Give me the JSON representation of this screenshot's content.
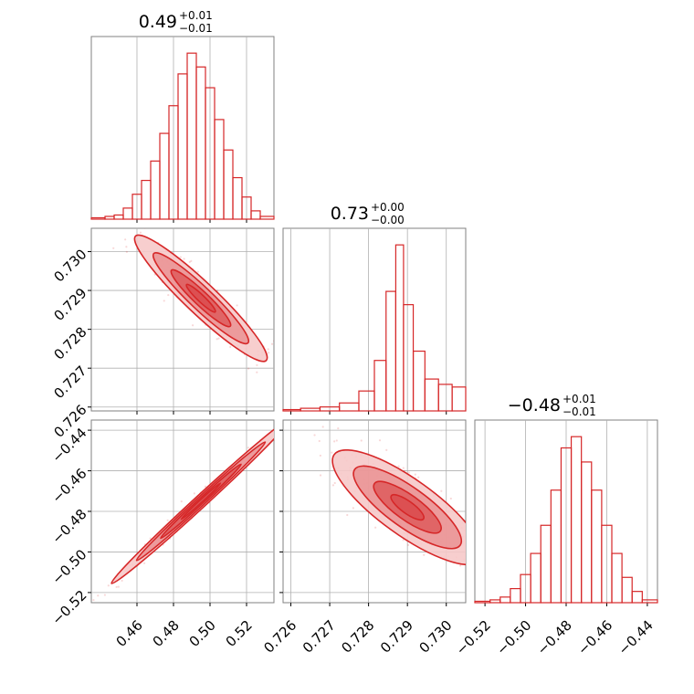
{
  "colors": {
    "accent": "#d62728",
    "grid": "#b0b0b0",
    "frame": "#808080",
    "fill_light": "#f6c9c9",
    "fill_mid": "#e88a8b",
    "fill_dark": "#dc4e50"
  },
  "chart_data": [
    {
      "type": "histogram",
      "panel": "hist-param-1",
      "title": {
        "median": "0.49",
        "plus": "+0.01",
        "minus": "−0.01"
      },
      "xlim": [
        0.435,
        0.535
      ],
      "grid": true,
      "x": [
        0.44,
        0.445,
        0.45,
        0.455,
        0.46,
        0.465,
        0.47,
        0.475,
        0.48,
        0.485,
        0.49,
        0.495,
        0.5,
        0.505,
        0.51,
        0.515,
        0.52,
        0.525,
        0.53
      ],
      "counts": [
        1,
        2,
        3,
        8,
        18,
        28,
        42,
        62,
        82,
        105,
        120,
        110,
        95,
        72,
        50,
        30,
        16,
        6,
        2
      ]
    },
    {
      "type": "histogram",
      "panel": "hist-param-2",
      "title": {
        "median": "0.73",
        "plus": "+0.00",
        "minus": "−0.00"
      },
      "xlim": [
        0.7258,
        0.7305
      ],
      "grid": true,
      "x": [
        0.726,
        0.7265,
        0.727,
        0.7275,
        0.728,
        0.7283,
        0.7286,
        0.7288,
        0.729,
        0.7293,
        0.7296,
        0.73,
        0.7303
      ],
      "counts": [
        1,
        2,
        3,
        6,
        15,
        38,
        90,
        125,
        80,
        45,
        24,
        20,
        18
      ]
    },
    {
      "type": "histogram",
      "panel": "hist-param-3",
      "title": {
        "median": "−0.48",
        "plus": "+0.01",
        "minus": "−0.01"
      },
      "xlim": [
        -0.525,
        -0.435
      ],
      "grid": true,
      "x": [
        -0.52,
        -0.515,
        -0.51,
        -0.505,
        -0.5,
        -0.495,
        -0.49,
        -0.485,
        -0.48,
        -0.475,
        -0.47,
        -0.465,
        -0.46,
        -0.455,
        -0.45,
        -0.445,
        -0.44
      ],
      "counts": [
        1,
        2,
        4,
        10,
        20,
        35,
        55,
        80,
        110,
        118,
        100,
        80,
        55,
        35,
        18,
        8,
        2
      ]
    },
    {
      "type": "contour",
      "panel": "param1-vs-param2",
      "xlim": [
        0.435,
        0.535
      ],
      "ylim": [
        0.7259,
        0.7306
      ],
      "center": {
        "x": 0.495,
        "y": 0.7288
      },
      "trend": "negative",
      "grid": true
    },
    {
      "type": "contour",
      "panel": "param1-vs-param3",
      "xlim": [
        0.435,
        0.535
      ],
      "ylim": [
        -0.525,
        -0.435
      ],
      "center": {
        "x": 0.495,
        "y": -0.475
      },
      "trend": "positive",
      "grid": true
    },
    {
      "type": "contour",
      "panel": "param2-vs-param3",
      "xlim": [
        0.7258,
        0.7305
      ],
      "ylim": [
        -0.525,
        -0.435
      ],
      "center": {
        "x": 0.729,
        "y": -0.478
      },
      "trend": "negative",
      "grid": true
    }
  ],
  "axes": {
    "p1_ticks": [
      "0.46",
      "0.48",
      "0.50",
      "0.52"
    ],
    "p1_tick_values": [
      0.46,
      0.48,
      0.5,
      0.52
    ],
    "p2_ticks": [
      "0.726",
      "0.727",
      "0.728",
      "0.729",
      "0.730"
    ],
    "p2_tick_values": [
      0.726,
      0.727,
      0.728,
      0.729,
      0.73
    ],
    "p3_ticks": [
      "−0.52",
      "−0.50",
      "−0.48",
      "−0.46",
      "−0.44"
    ],
    "p3_tick_values": [
      -0.52,
      -0.5,
      -0.48,
      -0.46,
      -0.44
    ]
  }
}
